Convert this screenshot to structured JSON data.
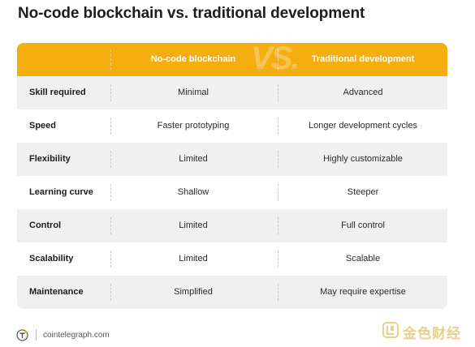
{
  "title": "No-code blockchain vs. traditional development",
  "header": {
    "watermark": "VS.",
    "col1": "No-code blockchain",
    "col2": "Traditional development"
  },
  "rows": [
    {
      "label": "Skill required",
      "nocode": "Minimal",
      "traditional": "Advanced"
    },
    {
      "label": "Speed",
      "nocode": "Faster prototyping",
      "traditional": "Longer development cycles"
    },
    {
      "label": "Flexibility",
      "nocode": "Limited",
      "traditional": "Highly customizable"
    },
    {
      "label": "Learning curve",
      "nocode": "Shallow",
      "traditional": "Steeper"
    },
    {
      "label": "Control",
      "nocode": "Limited",
      "traditional": "Full control"
    },
    {
      "label": "Scalability",
      "nocode": "Limited",
      "traditional": "Scalable"
    },
    {
      "label": "Maintenance",
      "nocode": "Simplified",
      "traditional": "May require expertise"
    }
  ],
  "footer": {
    "source": "cointelegraph.com",
    "logo_icon": "cointelegraph-logo-icon"
  },
  "watermark_badge": {
    "text": "金色财经",
    "icon": "jinse-logo-icon"
  },
  "colors": {
    "accent": "#f5ad0f",
    "row_shade": "#f0f0f0"
  }
}
